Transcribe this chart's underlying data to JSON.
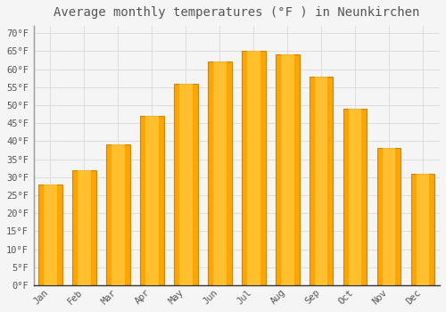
{
  "title": "Average monthly temperatures (°F ) in Neunkirchen",
  "months": [
    "Jan",
    "Feb",
    "Mar",
    "Apr",
    "May",
    "Jun",
    "Jul",
    "Aug",
    "Sep",
    "Oct",
    "Nov",
    "Dec"
  ],
  "values": [
    28,
    32,
    39,
    47,
    56,
    62,
    65,
    64,
    58,
    49,
    38,
    31
  ],
  "bar_color": "#FFA500",
  "bar_edge_color": "#CC8800",
  "bar_highlight_color": "#FFCC44",
  "background_color": "#F5F5F5",
  "plot_bg_color": "#F5F5F5",
  "grid_color": "#DDDDDD",
  "text_color": "#555555",
  "ylim": [
    0,
    72
  ],
  "yticks": [
    0,
    5,
    10,
    15,
    20,
    25,
    30,
    35,
    40,
    45,
    50,
    55,
    60,
    65,
    70
  ],
  "title_fontsize": 10,
  "tick_fontsize": 7.5,
  "bar_width": 0.7
}
